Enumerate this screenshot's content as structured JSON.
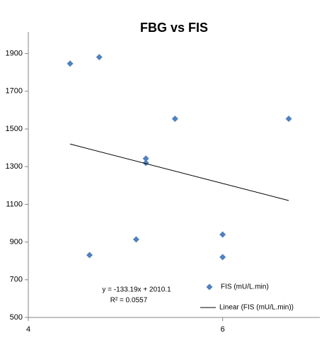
{
  "chart_data": {
    "type": "scatter",
    "title": "FBG vs FIS",
    "series": [
      {
        "name": "FIS (mU/L.min)",
        "color": "#4f81bd",
        "x": [
          4.43,
          4.73,
          5.51,
          6.68,
          5.21,
          5.21,
          4.63,
          5.11,
          6.0,
          6.0
        ],
        "values": [
          1847,
          1881,
          1554,
          1554,
          1343,
          1320,
          831,
          914,
          940,
          820
        ]
      }
    ],
    "trendline": {
      "name": "Linear (FIS (mU/L.min))",
      "color": "#000000",
      "slope": -133.19,
      "intercept": 2010.1,
      "x_range": [
        4.43,
        6.68
      ],
      "equation": "y = -133.19x + 2010.1",
      "r2_label": "R² = 0.0557"
    },
    "xlim": [
      4,
      7
    ],
    "xticks": [
      4,
      6
    ],
    "ylim": [
      500,
      2000
    ],
    "yticks": [
      500,
      700,
      900,
      1100,
      1300,
      1500,
      1700,
      1900
    ],
    "grid": false,
    "legend": "bottom-right"
  }
}
